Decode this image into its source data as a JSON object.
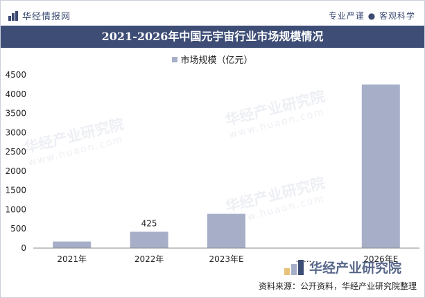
{
  "header": {
    "site_name": "华经情报网",
    "slogan": "专业严谨 ● 客观科学"
  },
  "title": "2021-2026年中国元宇宙行业市场规模情况",
  "watermark": {
    "text": "华经产业研究院",
    "url": "www.huaon.com"
  },
  "footer": {
    "logo_text": "华经产业研究院",
    "source": "资料来源：公开资料，华经产业研究院整理"
  },
  "chart_data": {
    "type": "bar",
    "categories": [
      "2021年",
      "2022年",
      "2023年E",
      "......",
      "2026年E"
    ],
    "series": [
      {
        "name": "市场规模（亿元）",
        "values": [
          170,
          425,
          890,
          null,
          4250
        ],
        "data_labels": [
          null,
          "425",
          null,
          null,
          null
        ],
        "color": "#a7afc8"
      }
    ],
    "ylim": [
      0,
      4500
    ],
    "yticks": [
      0,
      500,
      1000,
      1500,
      2000,
      2500,
      3000,
      3500,
      4000,
      4500
    ],
    "legend_position": "top-center",
    "grid": false
  }
}
